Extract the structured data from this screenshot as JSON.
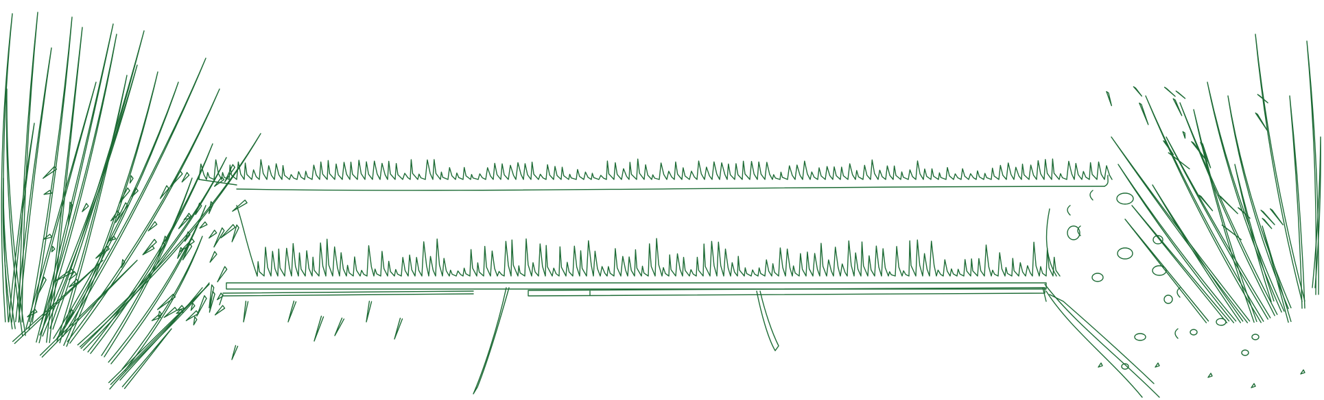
{
  "image": {
    "kind": "line-drawing",
    "style": "edge-detection outline",
    "line_color": "#1d6b35",
    "background_color": "#ffffff",
    "content": {
      "left_plant": "grass-tuft",
      "right_plant": "grass-tuft",
      "center": "bench"
    }
  }
}
